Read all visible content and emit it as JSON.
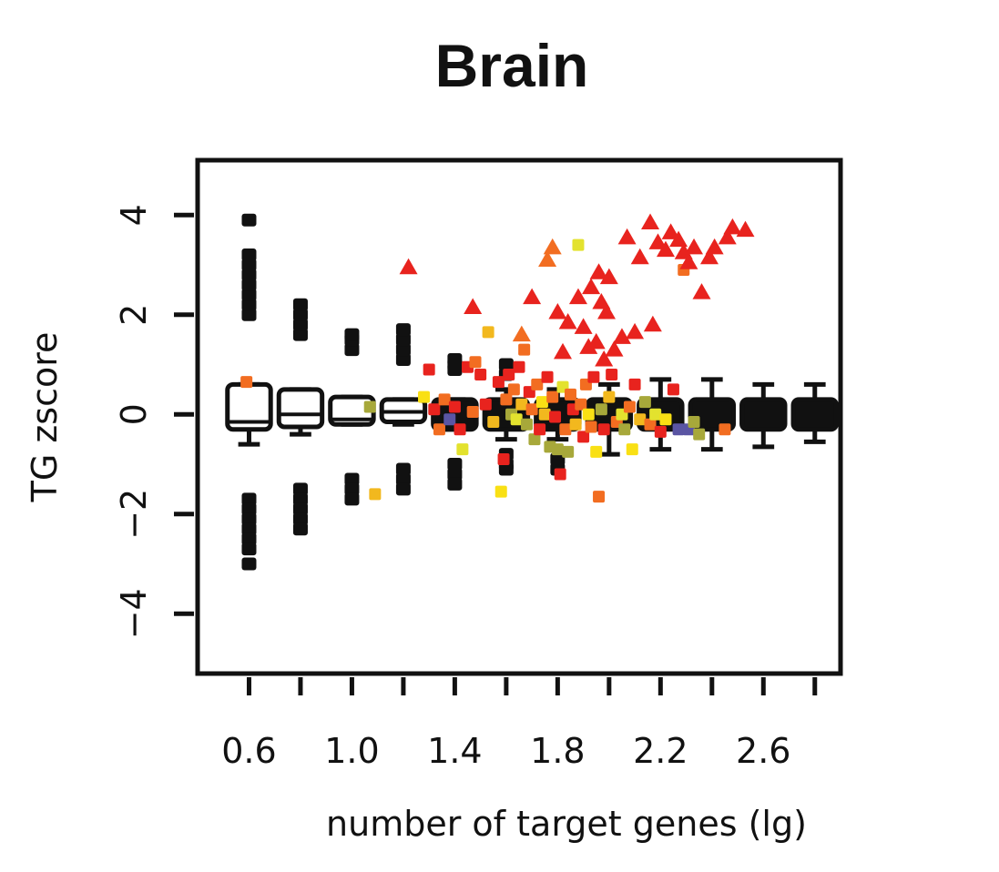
{
  "chart_data": {
    "type": "scatter",
    "title": "Brain",
    "xlabel": "number of target genes (lg)",
    "ylabel": "TG zscore",
    "xlim": [
      0.4,
      2.9
    ],
    "ylim": [
      -5.2,
      5.1
    ],
    "x_ticks": [
      0.6,
      0.8,
      1.0,
      1.2,
      1.4,
      1.6,
      1.8,
      2.0,
      2.2,
      2.4,
      2.6,
      2.8
    ],
    "x_tick_labels": [
      "0.6",
      "1.0",
      "1.4",
      "1.8",
      "2.2",
      "2.6"
    ],
    "x_tick_label_values": [
      0.6,
      1.0,
      1.4,
      1.8,
      2.2,
      2.6
    ],
    "y_ticks": [
      -4,
      -2,
      0,
      2,
      4
    ],
    "y_tick_labels": [
      "−4",
      "−2",
      "0",
      "2",
      "4"
    ],
    "grid": false,
    "boxplots": [
      {
        "x": 0.6,
        "q1": -0.3,
        "median": -0.15,
        "q3": 0.6,
        "whisker_low": -0.6,
        "whisker_high": 0.6,
        "fill": "white",
        "outliers": [
          2.0,
          2.2,
          2.4,
          2.6,
          2.8,
          3.0,
          3.2,
          3.9,
          -1.7,
          -1.9,
          -2.1,
          -2.3,
          -2.5,
          -2.7,
          -3.0
        ]
      },
      {
        "x": 0.8,
        "q1": -0.25,
        "median": 0.0,
        "q3": 0.5,
        "whisker_low": -0.4,
        "whisker_high": 0.5,
        "fill": "white",
        "outliers": [
          1.6,
          1.8,
          2.0,
          2.2,
          -1.5,
          -1.7,
          -1.9,
          -2.1,
          -2.3
        ]
      },
      {
        "x": 1.0,
        "q1": -0.2,
        "median": -0.1,
        "q3": 0.35,
        "whisker_low": -0.2,
        "whisker_high": 0.35,
        "fill": "white",
        "outliers": [
          1.3,
          1.5,
          1.6,
          -1.3,
          -1.5,
          -1.7
        ]
      },
      {
        "x": 1.2,
        "q1": -0.15,
        "median": 0.05,
        "q3": 0.3,
        "whisker_low": -0.2,
        "whisker_high": 0.3,
        "fill": "white",
        "outliers": [
          1.1,
          1.3,
          1.5,
          1.7,
          -1.1,
          -1.3,
          -1.5
        ]
      },
      {
        "x": 1.4,
        "q1": -0.3,
        "median": 0.0,
        "q3": 0.3,
        "whisker_low": -0.3,
        "whisker_high": 0.3,
        "fill": "black",
        "outliers": [
          0.9,
          1.0,
          1.1,
          -1.0,
          -1.2,
          -1.4
        ]
      },
      {
        "x": 1.6,
        "q1": -0.3,
        "median": 0.0,
        "q3": 0.3,
        "whisker_low": -0.5,
        "whisker_high": 0.5,
        "fill": "black",
        "outliers": [
          0.8,
          1.0,
          -0.8,
          -1.0,
          -1.1
        ]
      },
      {
        "x": 1.8,
        "q1": -0.3,
        "median": 0.0,
        "q3": 0.3,
        "whisker_low": -0.5,
        "whisker_high": 0.5,
        "fill": "black",
        "outliers": [
          -0.9,
          -1.1
        ]
      },
      {
        "x": 2.0,
        "q1": -0.3,
        "median": 0.0,
        "q3": 0.3,
        "whisker_low": -0.8,
        "whisker_high": 0.6,
        "fill": "black",
        "outliers": []
      },
      {
        "x": 2.2,
        "q1": -0.3,
        "median": 0.0,
        "q3": 0.3,
        "whisker_low": -0.7,
        "whisker_high": 0.7,
        "fill": "black",
        "outliers": []
      },
      {
        "x": 2.4,
        "q1": -0.3,
        "median": 0.0,
        "q3": 0.3,
        "whisker_low": -0.7,
        "whisker_high": 0.7,
        "fill": "black",
        "outliers": []
      },
      {
        "x": 2.6,
        "q1": -0.3,
        "median": 0.0,
        "q3": 0.3,
        "whisker_low": -0.65,
        "whisker_high": 0.6,
        "fill": "black",
        "outliers": []
      },
      {
        "x": 2.8,
        "q1": -0.3,
        "median": 0.0,
        "q3": 0.3,
        "whisker_low": -0.55,
        "whisker_high": 0.6,
        "fill": "black",
        "outliers": []
      }
    ],
    "triangles": [
      {
        "x": 1.22,
        "y": 2.95,
        "color": "#e8231e"
      },
      {
        "x": 1.47,
        "y": 2.15,
        "color": "#e8231e"
      },
      {
        "x": 1.66,
        "y": 1.6,
        "color": "#f26d21"
      },
      {
        "x": 1.7,
        "y": 2.35,
        "color": "#e8231e"
      },
      {
        "x": 1.76,
        "y": 3.1,
        "color": "#f26d21"
      },
      {
        "x": 1.78,
        "y": 3.35,
        "color": "#f26d21"
      },
      {
        "x": 1.8,
        "y": 2.05,
        "color": "#e8231e"
      },
      {
        "x": 1.82,
        "y": 1.25,
        "color": "#e8231e"
      },
      {
        "x": 1.84,
        "y": 1.85,
        "color": "#e8231e"
      },
      {
        "x": 1.88,
        "y": 2.35,
        "color": "#e8231e"
      },
      {
        "x": 1.9,
        "y": 1.75,
        "color": "#e8231e"
      },
      {
        "x": 1.92,
        "y": 1.35,
        "color": "#e8231e"
      },
      {
        "x": 1.93,
        "y": 2.55,
        "color": "#e8231e"
      },
      {
        "x": 1.95,
        "y": 1.45,
        "color": "#e8231e"
      },
      {
        "x": 1.96,
        "y": 2.85,
        "color": "#e8231e"
      },
      {
        "x": 1.97,
        "y": 2.25,
        "color": "#e8231e"
      },
      {
        "x": 1.98,
        "y": 1.1,
        "color": "#e8231e"
      },
      {
        "x": 1.99,
        "y": 2.05,
        "color": "#e8231e"
      },
      {
        "x": 2.0,
        "y": 2.75,
        "color": "#e8231e"
      },
      {
        "x": 2.02,
        "y": 1.3,
        "color": "#e8231e"
      },
      {
        "x": 2.05,
        "y": 1.55,
        "color": "#e8231e"
      },
      {
        "x": 2.07,
        "y": 3.55,
        "color": "#e8231e"
      },
      {
        "x": 2.1,
        "y": 1.65,
        "color": "#e8231e"
      },
      {
        "x": 2.12,
        "y": 3.15,
        "color": "#e8231e"
      },
      {
        "x": 2.16,
        "y": 3.85,
        "color": "#e8231e"
      },
      {
        "x": 2.17,
        "y": 1.8,
        "color": "#e8231e"
      },
      {
        "x": 2.19,
        "y": 3.45,
        "color": "#e8231e"
      },
      {
        "x": 2.22,
        "y": 3.3,
        "color": "#e8231e"
      },
      {
        "x": 2.24,
        "y": 3.65,
        "color": "#e8231e"
      },
      {
        "x": 2.27,
        "y": 3.5,
        "color": "#e8231e"
      },
      {
        "x": 2.29,
        "y": 3.25,
        "color": "#e8231e"
      },
      {
        "x": 2.31,
        "y": 3.05,
        "color": "#e8231e"
      },
      {
        "x": 2.33,
        "y": 3.35,
        "color": "#e8231e"
      },
      {
        "x": 2.36,
        "y": 2.45,
        "color": "#e8231e"
      },
      {
        "x": 2.39,
        "y": 3.15,
        "color": "#e8231e"
      },
      {
        "x": 2.41,
        "y": 3.35,
        "color": "#e8231e"
      },
      {
        "x": 2.46,
        "y": 3.55,
        "color": "#e8231e"
      },
      {
        "x": 2.48,
        "y": 3.75,
        "color": "#e8231e"
      },
      {
        "x": 2.53,
        "y": 3.7,
        "color": "#e8231e"
      }
    ],
    "squares": [
      {
        "x": 0.59,
        "y": 0.65,
        "color": "#f26d21"
      },
      {
        "x": 1.07,
        "y": 0.15,
        "color": "#a7a83a"
      },
      {
        "x": 1.09,
        "y": -1.6,
        "color": "#f2b81e"
      },
      {
        "x": 1.28,
        "y": 0.35,
        "color": "#f9e014"
      },
      {
        "x": 1.3,
        "y": 0.9,
        "color": "#e8231e"
      },
      {
        "x": 1.32,
        "y": 0.1,
        "color": "#e8231e"
      },
      {
        "x": 1.34,
        "y": -0.3,
        "color": "#f26d21"
      },
      {
        "x": 1.36,
        "y": 0.3,
        "color": "#f26d21"
      },
      {
        "x": 1.38,
        "y": -0.1,
        "color": "#5a55a3"
      },
      {
        "x": 1.4,
        "y": 0.15,
        "color": "#e8231e"
      },
      {
        "x": 1.42,
        "y": -0.3,
        "color": "#e8231e"
      },
      {
        "x": 1.43,
        "y": -0.7,
        "color": "#e3e22e"
      },
      {
        "x": 1.45,
        "y": 0.95,
        "color": "#e8231e"
      },
      {
        "x": 1.47,
        "y": 0.05,
        "color": "#f26d21"
      },
      {
        "x": 1.48,
        "y": 1.05,
        "color": "#f26d21"
      },
      {
        "x": 1.5,
        "y": 0.8,
        "color": "#e8231e"
      },
      {
        "x": 1.52,
        "y": 0.2,
        "color": "#e8231e"
      },
      {
        "x": 1.53,
        "y": 1.65,
        "color": "#f2b81e"
      },
      {
        "x": 1.55,
        "y": -0.15,
        "color": "#f2b81e"
      },
      {
        "x": 1.57,
        "y": 0.65,
        "color": "#e8231e"
      },
      {
        "x": 1.58,
        "y": -1.55,
        "color": "#f9e014"
      },
      {
        "x": 1.59,
        "y": -0.9,
        "color": "#e8231e"
      },
      {
        "x": 1.6,
        "y": 0.3,
        "color": "#f26d21"
      },
      {
        "x": 1.61,
        "y": 0.8,
        "color": "#e8231e"
      },
      {
        "x": 1.62,
        "y": 0.0,
        "color": "#a7a83a"
      },
      {
        "x": 1.63,
        "y": 0.5,
        "color": "#f26d21"
      },
      {
        "x": 1.64,
        "y": -0.1,
        "color": "#e3e22e"
      },
      {
        "x": 1.65,
        "y": 0.95,
        "color": "#e8231e"
      },
      {
        "x": 1.66,
        "y": 0.2,
        "color": "#f2b81e"
      },
      {
        "x": 1.67,
        "y": 1.3,
        "color": "#f26d21"
      },
      {
        "x": 1.68,
        "y": -0.2,
        "color": "#a7a83a"
      },
      {
        "x": 1.69,
        "y": 0.45,
        "color": "#e8231e"
      },
      {
        "x": 1.7,
        "y": 0.1,
        "color": "#f26d21"
      },
      {
        "x": 1.71,
        "y": -0.5,
        "color": "#a7a83a"
      },
      {
        "x": 1.72,
        "y": 0.6,
        "color": "#f26d21"
      },
      {
        "x": 1.73,
        "y": -0.3,
        "color": "#e8231e"
      },
      {
        "x": 1.74,
        "y": 0.25,
        "color": "#f9e014"
      },
      {
        "x": 1.75,
        "y": 0.0,
        "color": "#f2b81e"
      },
      {
        "x": 1.76,
        "y": 0.75,
        "color": "#e8231e"
      },
      {
        "x": 1.77,
        "y": -0.65,
        "color": "#a7a83a"
      },
      {
        "x": 1.78,
        "y": 0.35,
        "color": "#f26d21"
      },
      {
        "x": 1.79,
        "y": -0.05,
        "color": "#e8231e"
      },
      {
        "x": 1.8,
        "y": -0.7,
        "color": "#a7a83a"
      },
      {
        "x": 1.81,
        "y": -1.2,
        "color": "#e8231e"
      },
      {
        "x": 1.82,
        "y": 0.55,
        "color": "#e3e22e"
      },
      {
        "x": 1.83,
        "y": -0.3,
        "color": "#f26d21"
      },
      {
        "x": 1.84,
        "y": -0.75,
        "color": "#a7a83a"
      },
      {
        "x": 1.85,
        "y": 0.4,
        "color": "#f26d21"
      },
      {
        "x": 1.86,
        "y": 0.1,
        "color": "#e8231e"
      },
      {
        "x": 1.87,
        "y": -0.2,
        "color": "#f2b81e"
      },
      {
        "x": 1.88,
        "y": 3.4,
        "color": "#e3e22e"
      },
      {
        "x": 1.89,
        "y": 0.2,
        "color": "#f26d21"
      },
      {
        "x": 1.9,
        "y": -0.45,
        "color": "#e8231e"
      },
      {
        "x": 1.91,
        "y": 0.6,
        "color": "#f26d21"
      },
      {
        "x": 1.92,
        "y": 0.0,
        "color": "#f9e014"
      },
      {
        "x": 1.93,
        "y": -0.25,
        "color": "#f26d21"
      },
      {
        "x": 1.94,
        "y": 0.75,
        "color": "#e8231e"
      },
      {
        "x": 1.95,
        "y": -0.75,
        "color": "#f9e014"
      },
      {
        "x": 1.96,
        "y": -1.65,
        "color": "#f26d21"
      },
      {
        "x": 1.97,
        "y": 0.1,
        "color": "#a7a83a"
      },
      {
        "x": 1.98,
        "y": -0.3,
        "color": "#e8231e"
      },
      {
        "x": 2.0,
        "y": 0.35,
        "color": "#f2b81e"
      },
      {
        "x": 2.01,
        "y": 0.8,
        "color": "#e8231e"
      },
      {
        "x": 2.03,
        "y": -0.15,
        "color": "#f26d21"
      },
      {
        "x": 2.05,
        "y": 0.0,
        "color": "#e3e22e"
      },
      {
        "x": 2.06,
        "y": -0.3,
        "color": "#a7a83a"
      },
      {
        "x": 2.08,
        "y": 0.15,
        "color": "#f26d21"
      },
      {
        "x": 2.09,
        "y": -0.7,
        "color": "#f9e014"
      },
      {
        "x": 2.1,
        "y": 0.6,
        "color": "#e8231e"
      },
      {
        "x": 2.12,
        "y": -0.1,
        "color": "#f2b81e"
      },
      {
        "x": 2.14,
        "y": 0.25,
        "color": "#a7a83a"
      },
      {
        "x": 2.16,
        "y": -0.2,
        "color": "#f26d21"
      },
      {
        "x": 2.18,
        "y": 0.0,
        "color": "#e3e22e"
      },
      {
        "x": 2.2,
        "y": -0.35,
        "color": "#e8231e"
      },
      {
        "x": 2.22,
        "y": -0.1,
        "color": "#f9e014"
      },
      {
        "x": 2.25,
        "y": 0.5,
        "color": "#e8231e"
      },
      {
        "x": 2.27,
        "y": -0.3,
        "color": "#5a55a3"
      },
      {
        "x": 2.29,
        "y": 2.9,
        "color": "#f26d21"
      },
      {
        "x": 2.31,
        "y": -0.3,
        "color": "#5a55a3"
      },
      {
        "x": 2.33,
        "y": -0.15,
        "color": "#a7a83a"
      },
      {
        "x": 2.35,
        "y": -0.4,
        "color": "#a7a83a"
      },
      {
        "x": 2.45,
        "y": -0.3,
        "color": "#f26d21"
      }
    ]
  }
}
